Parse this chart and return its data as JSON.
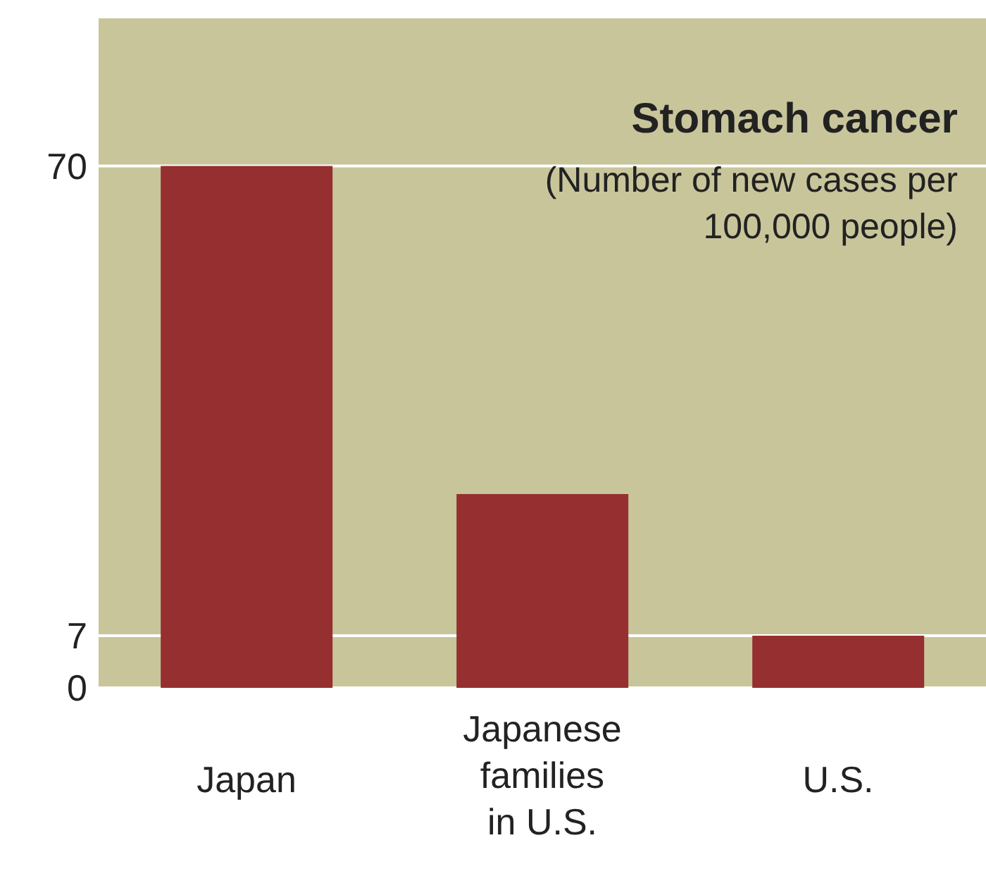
{
  "chart_data": {
    "type": "bar",
    "title": "Stomach cancer",
    "subtitle": "(Number of new cases per 100,000 people)",
    "categories": [
      "Japan",
      "Japanese families in U.S.",
      "U.S."
    ],
    "values": [
      70,
      26,
      7
    ],
    "color": "#952f30",
    "ylim": [
      0,
      90
    ],
    "yticks": [
      0,
      7,
      70
    ],
    "grid": "y"
  }
}
